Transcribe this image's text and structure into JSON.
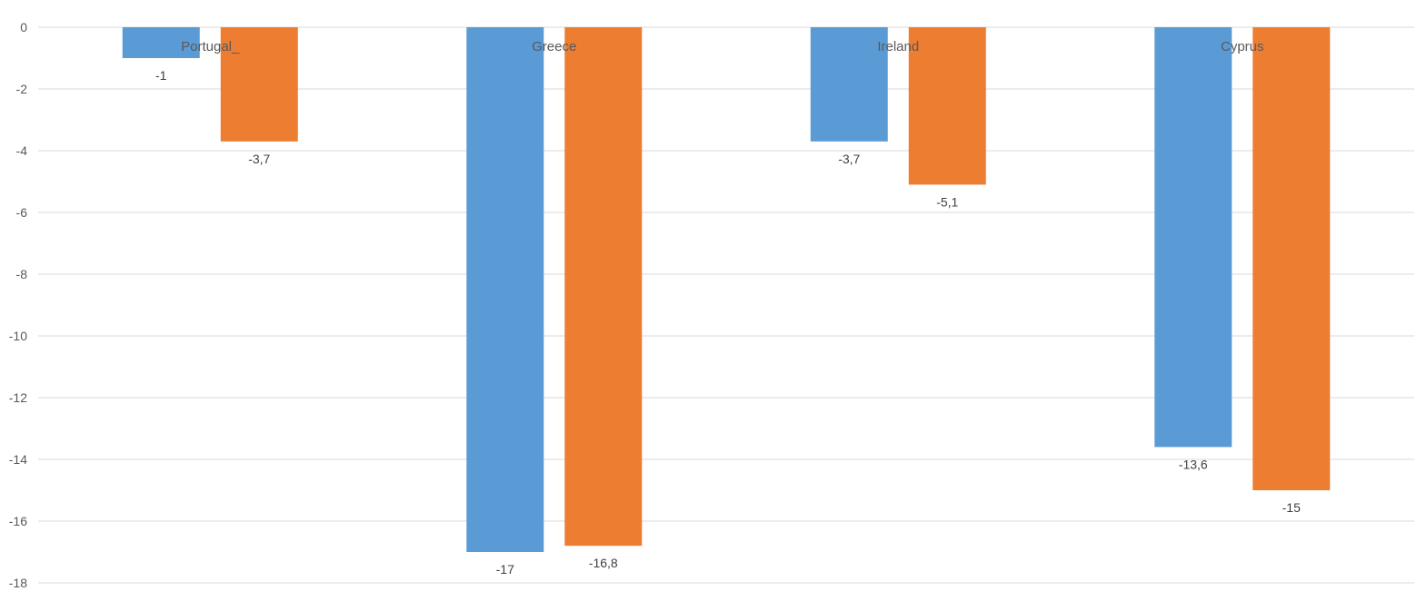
{
  "chart_data": {
    "type": "bar",
    "categories": [
      "Portugal_",
      "Greece",
      "Ireland",
      "Cyprus"
    ],
    "series": [
      {
        "values": [
          -1,
          -17,
          -3.7,
          -13.6
        ],
        "labels": [
          "-1",
          "-17",
          "-3,7",
          "-13,6"
        ],
        "color": "#5b9bd5"
      },
      {
        "values": [
          -3.7,
          -16.8,
          -5.1,
          -15
        ],
        "labels": [
          "-3,7",
          "-16,8",
          "-5,1",
          "-15"
        ],
        "color": "#ed7d31"
      }
    ],
    "y_ticks": [
      0,
      -2,
      -4,
      -6,
      -8,
      -10,
      -12,
      -14,
      -16,
      -18
    ],
    "y_tick_labels": [
      "0",
      "-2",
      "-4",
      "-6",
      "-8",
      "-10",
      "-12",
      "-14",
      "-16",
      "-18"
    ],
    "ylim": [
      -18,
      0
    ],
    "grid": true,
    "title": "",
    "xlabel": "",
    "ylabel": ""
  }
}
